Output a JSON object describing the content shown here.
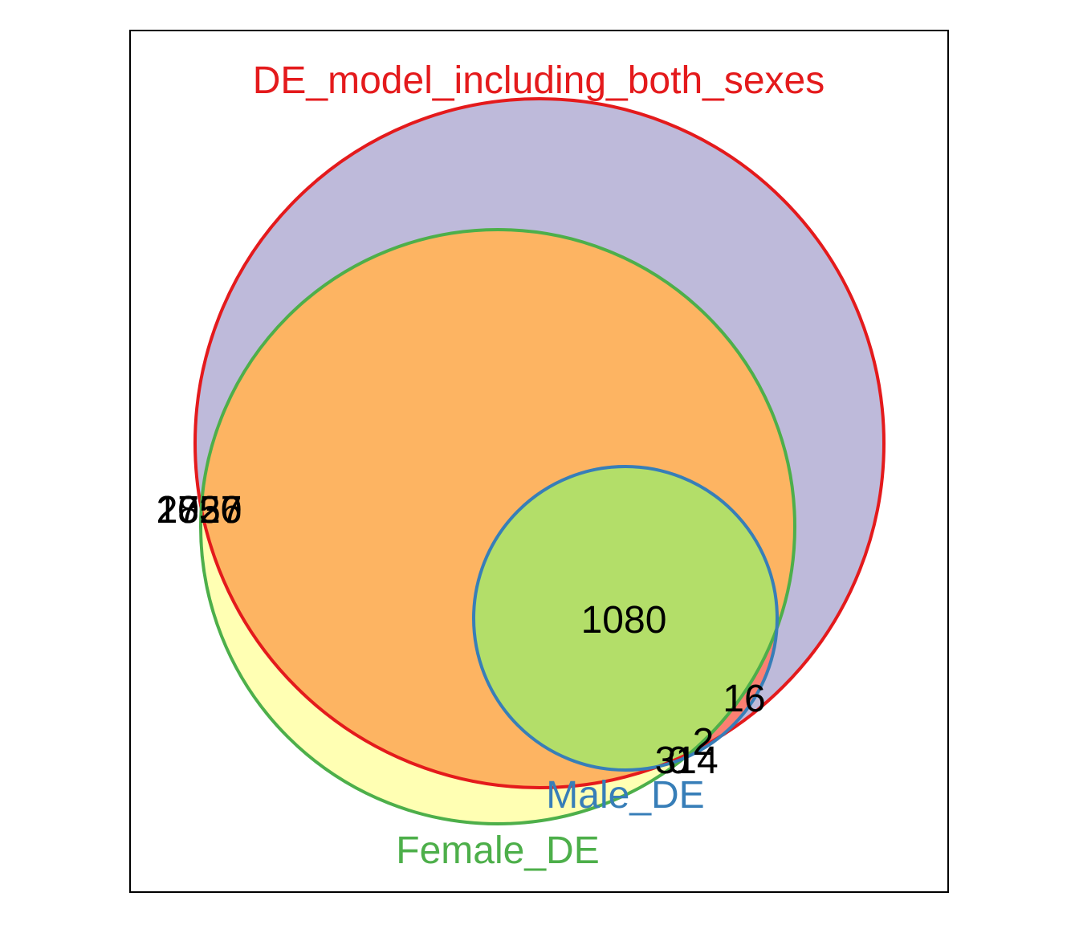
{
  "sets": [
    {
      "id": "de_both",
      "label": "DE_model_including_both_sexes",
      "fill": "#BEBADA",
      "stroke": "#E41A1C"
    },
    {
      "id": "female",
      "label": "Female_DE",
      "fill": "#FFFFB3",
      "stroke": "#4DAF4A"
    },
    {
      "id": "male",
      "label": "Male_DE",
      "fill": "#B3DE69",
      "stroke": "#377EB8"
    }
  ],
  "colors": {
    "de_and_female": "#FDB462",
    "de_and_male_only": "#FB8072",
    "count_text": "#000000",
    "frame": "#000000"
  },
  "counts": {
    "overlapping_left_a": "2737",
    "overlapping_left_b": "1856",
    "overlapping_left_c": "2020",
    "all_three": "1080",
    "de_and_male": "16",
    "small_a": "2",
    "small_b": "3",
    "small_c": "0",
    "small_d": "14"
  }
}
